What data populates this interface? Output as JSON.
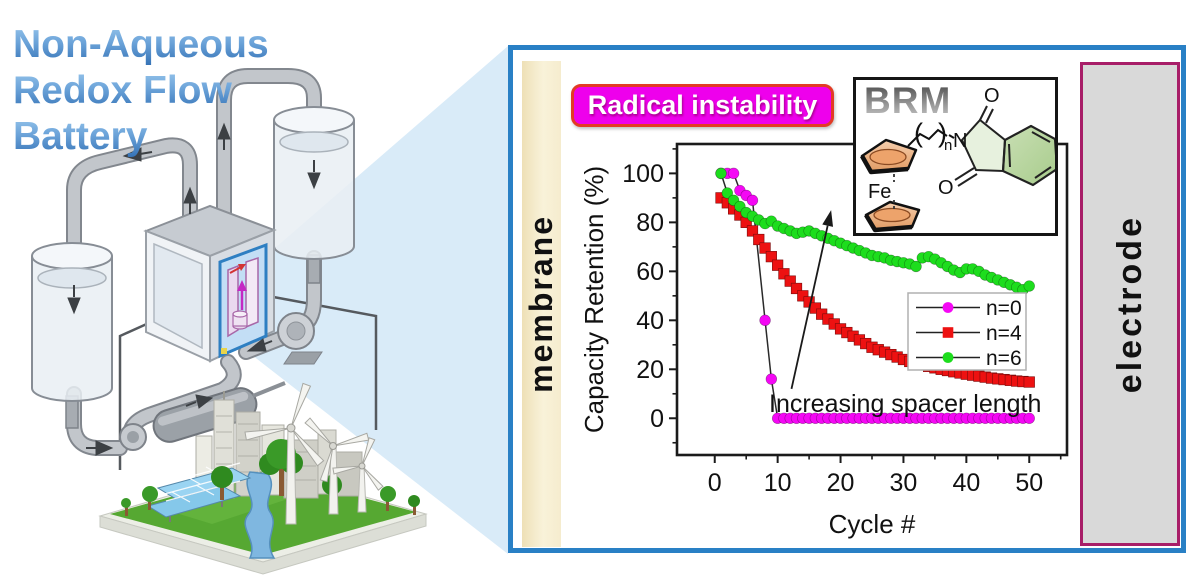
{
  "title": {
    "line1": "Non-Aqueous",
    "line2": "Redox Flow",
    "line3": "Battery"
  },
  "panel": {
    "membrane_label": "membrane",
    "electrode_label": "electrode",
    "callout_label": "Radical instability",
    "molecule_box": {
      "label": "BRM",
      "fe_label": "Fe",
      "n_atom": "N",
      "chain_open": "(",
      "chain_close": ")",
      "chain_sub": "n",
      "o_top": "O",
      "o_bottom": "O"
    }
  },
  "colors": {
    "panel_border": "#2980c5",
    "membrane_fill": "#f5ecce",
    "electrode_fill": "#d9d9d9",
    "electrode_border": "#a81e68",
    "badge_fill": "#ee00ec",
    "badge_border": "#e23b25"
  },
  "chart_data": {
    "type": "scatter",
    "title": "",
    "xlabel": "Cycle #",
    "ylabel": "Capacity Retention (%)",
    "xlim": [
      -6,
      56
    ],
    "ylim": [
      -15,
      112
    ],
    "xticks": [
      0,
      10,
      20,
      30,
      40,
      50
    ],
    "yticks": [
      0,
      20,
      40,
      60,
      80,
      100
    ],
    "grid": false,
    "legend_position": "center-right",
    "annotation": {
      "text": "Increasing spacer length",
      "arrow_from": [
        12.2,
        12
      ],
      "arrow_to": [
        18.5,
        85
      ]
    },
    "series": [
      {
        "name": "n=0",
        "color": "#f408f4",
        "marker": "circle",
        "points": [
          [
            1,
            100
          ],
          [
            2,
            100
          ],
          [
            3,
            100
          ],
          [
            4,
            93
          ],
          [
            5,
            91
          ],
          [
            6,
            89
          ],
          [
            8,
            40
          ],
          [
            9,
            16
          ],
          [
            10,
            0
          ],
          [
            11,
            0
          ],
          [
            12,
            0
          ],
          [
            13,
            0
          ],
          [
            14,
            0
          ],
          [
            15,
            0
          ],
          [
            16,
            0
          ],
          [
            17,
            0
          ],
          [
            18,
            0
          ],
          [
            19,
            0
          ],
          [
            20,
            0
          ],
          [
            21,
            0
          ],
          [
            22,
            0
          ],
          [
            23,
            0
          ],
          [
            24,
            0
          ],
          [
            25,
            0
          ],
          [
            26,
            0
          ],
          [
            27,
            0
          ],
          [
            28,
            0
          ],
          [
            29,
            0
          ],
          [
            30,
            0
          ],
          [
            31,
            0
          ],
          [
            32,
            0
          ],
          [
            33,
            0
          ],
          [
            34,
            0
          ],
          [
            35,
            0
          ],
          [
            36,
            0
          ],
          [
            37,
            0
          ],
          [
            38,
            0
          ],
          [
            39,
            0
          ],
          [
            40,
            0
          ],
          [
            41,
            0
          ],
          [
            42,
            0
          ],
          [
            43,
            0
          ],
          [
            44,
            0
          ],
          [
            45,
            0
          ],
          [
            46,
            0
          ],
          [
            47,
            0
          ],
          [
            48,
            0
          ],
          [
            49,
            0
          ],
          [
            50,
            0
          ]
        ]
      },
      {
        "name": "n=4",
        "color": "#ed1111",
        "marker": "square",
        "points": [
          [
            1,
            90
          ],
          [
            2,
            88
          ],
          [
            3,
            85.5
          ],
          [
            4,
            83
          ],
          [
            5,
            80
          ],
          [
            6,
            76.5
          ],
          [
            7,
            73
          ],
          [
            8,
            69.5
          ],
          [
            9,
            66
          ],
          [
            10,
            62.5
          ],
          [
            11,
            59
          ],
          [
            12,
            56
          ],
          [
            13,
            53
          ],
          [
            14,
            50
          ],
          [
            15,
            47.5
          ],
          [
            16,
            45
          ],
          [
            17,
            42.5
          ],
          [
            18,
            40.5
          ],
          [
            19,
            38.5
          ],
          [
            20,
            36.5
          ],
          [
            21,
            35
          ],
          [
            22,
            33.5
          ],
          [
            23,
            32
          ],
          [
            24,
            30.5
          ],
          [
            25,
            29
          ],
          [
            26,
            28
          ],
          [
            27,
            27
          ],
          [
            28,
            26
          ],
          [
            29,
            25
          ],
          [
            30,
            24
          ],
          [
            31,
            23.2
          ],
          [
            32,
            22.5
          ],
          [
            33,
            21.8
          ],
          [
            34,
            21.2
          ],
          [
            35,
            20.6
          ],
          [
            36,
            20
          ],
          [
            37,
            19.5
          ],
          [
            38,
            19
          ],
          [
            39,
            18.5
          ],
          [
            40,
            18
          ],
          [
            41,
            17.6
          ],
          [
            42,
            17.2
          ],
          [
            43,
            16.8
          ],
          [
            44,
            16.4
          ],
          [
            45,
            16.1
          ],
          [
            46,
            15.8
          ],
          [
            47,
            15.5
          ],
          [
            48,
            15.2
          ],
          [
            49,
            15
          ],
          [
            50,
            14.8
          ]
        ]
      },
      {
        "name": "n=6",
        "color": "#1ddd1d",
        "marker": "circle",
        "points": [
          [
            1,
            100
          ],
          [
            2,
            92
          ],
          [
            3,
            89
          ],
          [
            4,
            86.5
          ],
          [
            5,
            84
          ],
          [
            6,
            82.5
          ],
          [
            7,
            81
          ],
          [
            8,
            79.5
          ],
          [
            9,
            80.5
          ],
          [
            10,
            78.5
          ],
          [
            11,
            77.5
          ],
          [
            12,
            76.5
          ],
          [
            13,
            75.5
          ],
          [
            14,
            76
          ],
          [
            15,
            76.5
          ],
          [
            16,
            75.5
          ],
          [
            17,
            74.5
          ],
          [
            18,
            73.5
          ],
          [
            19,
            72.5
          ],
          [
            20,
            71.5
          ],
          [
            21,
            70.5
          ],
          [
            22,
            69.5
          ],
          [
            23,
            68.5
          ],
          [
            24,
            67.5
          ],
          [
            25,
            66.5
          ],
          [
            26,
            66
          ],
          [
            27,
            65.5
          ],
          [
            28,
            64.5
          ],
          [
            29,
            64
          ],
          [
            30,
            63.5
          ],
          [
            31,
            63
          ],
          [
            32,
            62
          ],
          [
            33,
            65.5
          ],
          [
            34,
            66
          ],
          [
            35,
            65
          ],
          [
            36,
            63.5
          ],
          [
            37,
            62
          ],
          [
            38,
            60.5
          ],
          [
            39,
            59.5
          ],
          [
            40,
            61
          ],
          [
            41,
            61
          ],
          [
            42,
            60
          ],
          [
            43,
            58.5
          ],
          [
            44,
            57.5
          ],
          [
            45,
            56.5
          ],
          [
            46,
            55.5
          ],
          [
            47,
            54.5
          ],
          [
            48,
            53.5
          ],
          [
            49,
            52.5
          ],
          [
            50,
            54
          ]
        ]
      }
    ]
  }
}
